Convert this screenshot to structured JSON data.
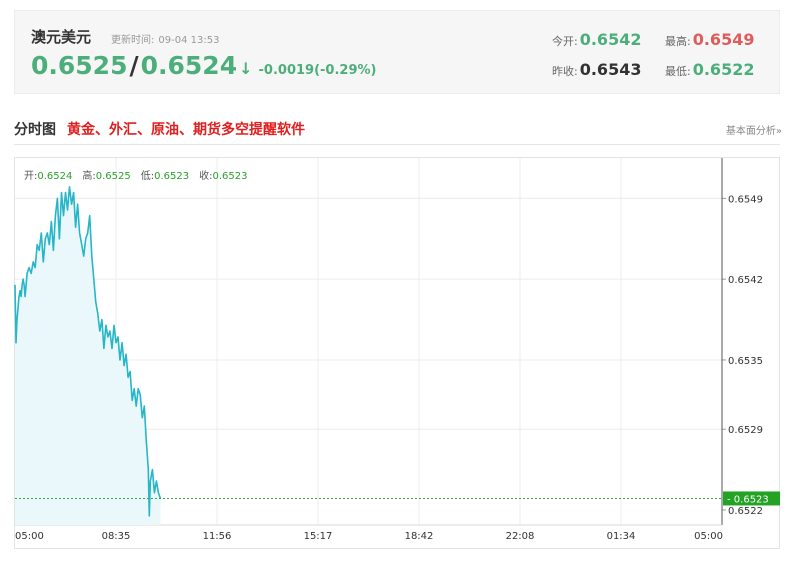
{
  "quote": {
    "name": "澳元美元",
    "update_label": "更新时间:",
    "update_time": "09-04 13:53",
    "bid": "0.6525",
    "slash": "/",
    "ask": "0.6524",
    "arrow": "↓",
    "change": "-0.0019(-0.29%)",
    "open_label": "今开:",
    "open": "0.6542",
    "high_label": "最高:",
    "high": "0.6549",
    "prev_close_label": "昨收:",
    "prev_close": "0.6543",
    "low_label": "最低:",
    "low": "0.6522",
    "colors": {
      "up": "#4cae7a",
      "high": "#e05c5c"
    }
  },
  "section": {
    "title": "分时图",
    "link": "黄金、外汇、原油、期货多空提醒软件",
    "fundamental": "基本面分析»"
  },
  "ohlc": {
    "open_label": "开:",
    "open": "0.6524",
    "high_label": "高:",
    "high": "0.6525",
    "low_label": "低:",
    "low": "0.6523",
    "close_label": "收:",
    "close": "0.6523"
  },
  "chart_data": {
    "type": "area",
    "title": "",
    "xlabel": "",
    "ylabel": "",
    "x_ticks": [
      "05:00",
      "08:35",
      "11:56",
      "15:17",
      "18:42",
      "22:08",
      "01:34",
      "05:00"
    ],
    "y_ticks": [
      "0.6549",
      "0.6542",
      "0.6535",
      "0.6529",
      "0.6522"
    ],
    "ylim": [
      0.65207,
      0.65525
    ],
    "x_range": [
      "05:00",
      "05:00"
    ],
    "current_price": "0.6523",
    "grid": true,
    "colors": {
      "line": "#27b5c8",
      "fill": "#eaf8fb",
      "current_line": "#3aa63a",
      "current_tag": "#23a223"
    },
    "series": [
      {
        "values": [
          [
            0.0,
            0.65415
          ],
          [
            0.01,
            0.65365
          ],
          [
            0.02,
            0.65385
          ],
          [
            0.03,
            0.65395
          ],
          [
            0.04,
            0.65405
          ],
          [
            0.05,
            0.6541
          ],
          [
            0.06,
            0.65405
          ],
          [
            0.07,
            0.65415
          ],
          [
            0.08,
            0.6542
          ],
          [
            0.09,
            0.65415
          ],
          [
            0.1,
            0.65405
          ],
          [
            0.12,
            0.65425
          ],
          [
            0.14,
            0.6543
          ],
          [
            0.16,
            0.65425
          ],
          [
            0.18,
            0.65435
          ],
          [
            0.2,
            0.6543
          ],
          [
            0.22,
            0.6545
          ],
          [
            0.24,
            0.65445
          ],
          [
            0.26,
            0.6546
          ],
          [
            0.28,
            0.65435
          ],
          [
            0.3,
            0.65455
          ],
          [
            0.32,
            0.6546
          ],
          [
            0.34,
            0.6545
          ],
          [
            0.36,
            0.6547
          ],
          [
            0.38,
            0.65445
          ],
          [
            0.4,
            0.65475
          ],
          [
            0.42,
            0.6549
          ],
          [
            0.44,
            0.65455
          ],
          [
            0.46,
            0.65495
          ],
          [
            0.48,
            0.65475
          ],
          [
            0.5,
            0.65495
          ],
          [
            0.52,
            0.6548
          ],
          [
            0.54,
            0.655
          ],
          [
            0.56,
            0.65485
          ],
          [
            0.58,
            0.65495
          ],
          [
            0.6,
            0.65465
          ],
          [
            0.62,
            0.65485
          ],
          [
            0.64,
            0.6546
          ],
          [
            0.66,
            0.6545
          ],
          [
            0.68,
            0.6544
          ],
          [
            0.7,
            0.65455
          ],
          [
            0.72,
            0.6546
          ],
          [
            0.74,
            0.65475
          ],
          [
            0.76,
            0.6544
          ],
          [
            0.78,
            0.6542
          ],
          [
            0.8,
            0.654
          ],
          [
            0.82,
            0.6539
          ],
          [
            0.84,
            0.65375
          ],
          [
            0.86,
            0.65385
          ],
          [
            0.88,
            0.6536
          ],
          [
            0.9,
            0.6538
          ],
          [
            0.92,
            0.6537
          ],
          [
            0.94,
            0.65375
          ],
          [
            0.96,
            0.6536
          ],
          [
            0.98,
            0.6538
          ],
          [
            1.0,
            0.65365
          ],
          [
            1.02,
            0.6537
          ],
          [
            1.04,
            0.6535
          ],
          [
            1.06,
            0.65365
          ],
          [
            1.08,
            0.65345
          ],
          [
            1.1,
            0.65355
          ],
          [
            1.12,
            0.65335
          ],
          [
            1.14,
            0.6534
          ],
          [
            1.16,
            0.65315
          ],
          [
            1.18,
            0.65325
          ],
          [
            1.2,
            0.6531
          ],
          [
            1.22,
            0.65325
          ],
          [
            1.24,
            0.6532
          ],
          [
            1.26,
            0.653
          ],
          [
            1.28,
            0.6531
          ],
          [
            1.3,
            0.6528
          ],
          [
            1.32,
            0.65255
          ],
          [
            1.33,
            0.65215
          ],
          [
            1.34,
            0.65245
          ],
          [
            1.36,
            0.65255
          ],
          [
            1.38,
            0.65235
          ],
          [
            1.4,
            0.65245
          ],
          [
            1.42,
            0.65235
          ],
          [
            1.44,
            0.6523
          ]
        ]
      }
    ]
  }
}
